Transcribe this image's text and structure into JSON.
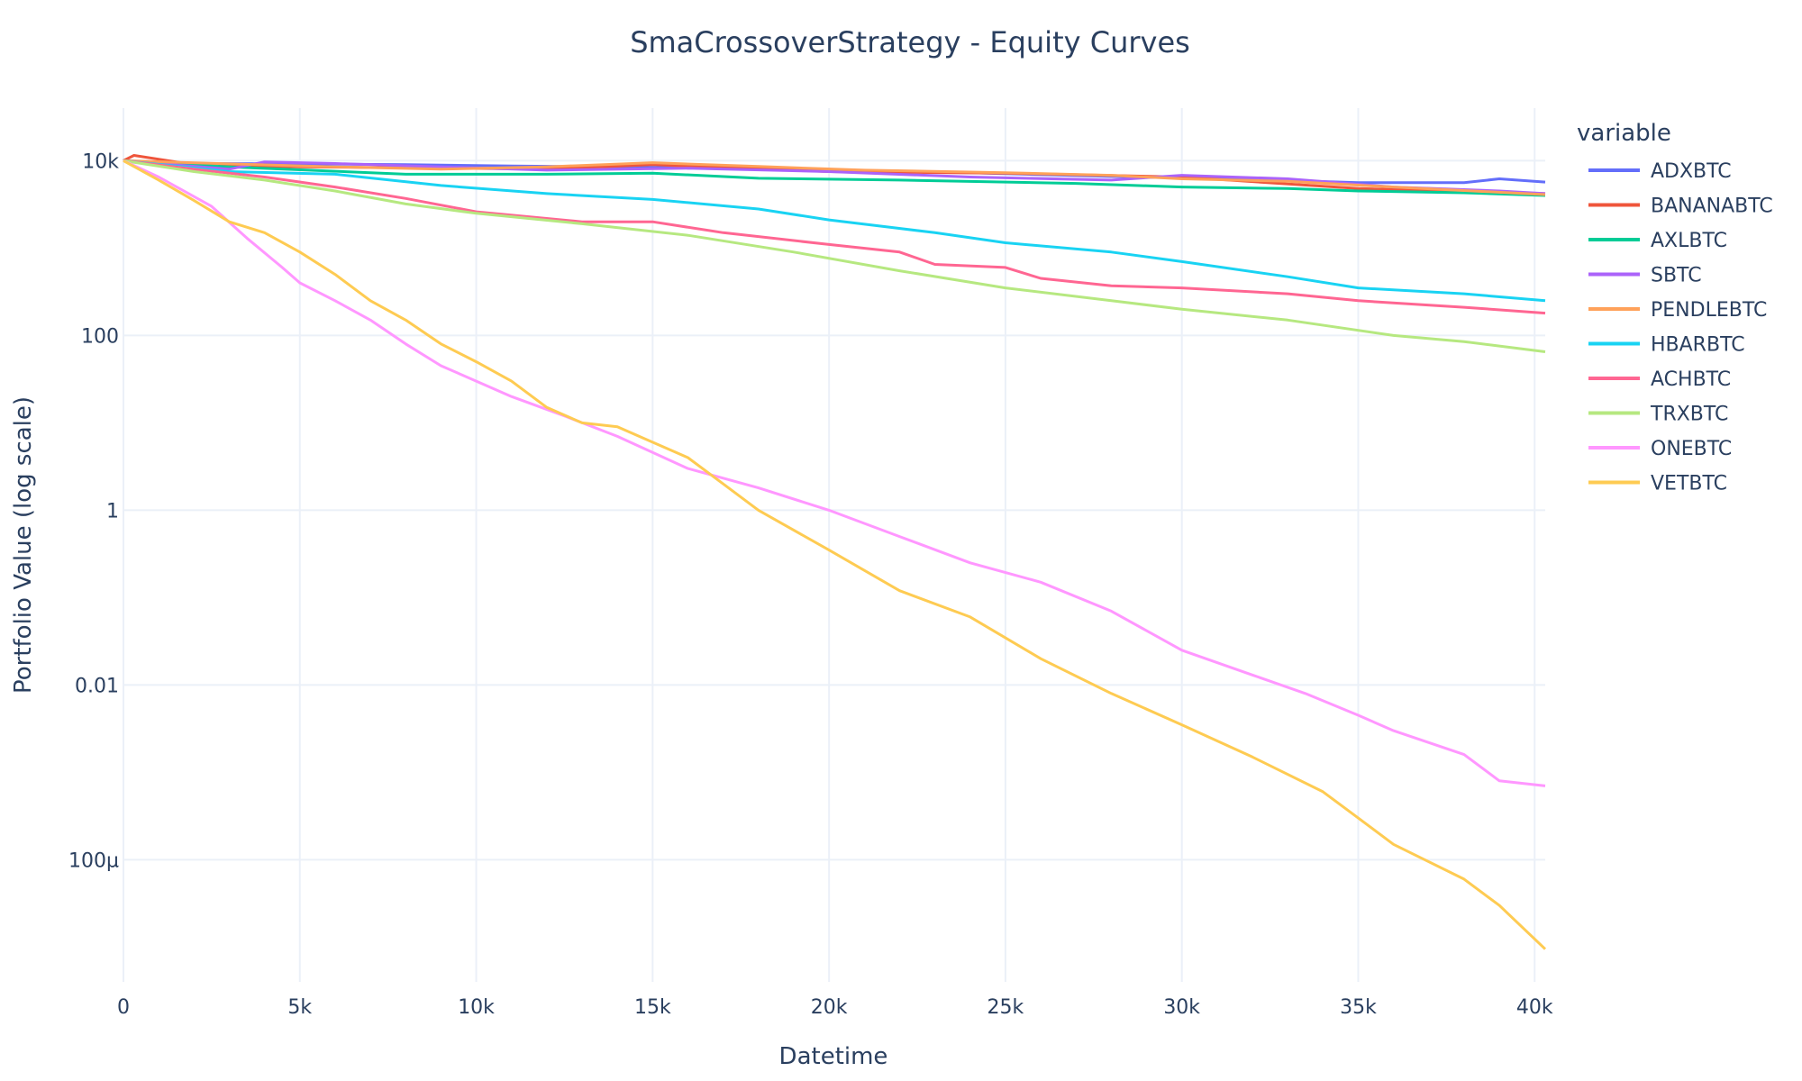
{
  "chart_data": {
    "type": "line",
    "title": "SmaCrossoverStrategy - Equity Curves",
    "xlabel": "Datetime",
    "ylabel": "Portfolio Value (log scale)",
    "yscale": "log",
    "grid": true,
    "legend_title": "variable",
    "legend_position": "right",
    "xlim": [
      0,
      40300
    ],
    "ylim": [
      4e-06,
      40000
    ],
    "x_ticks": [
      {
        "value": 0,
        "label": "0"
      },
      {
        "value": 5000,
        "label": "5k"
      },
      {
        "value": 10000,
        "label": "10k"
      },
      {
        "value": 15000,
        "label": "15k"
      },
      {
        "value": 20000,
        "label": "20k"
      },
      {
        "value": 25000,
        "label": "25k"
      },
      {
        "value": 30000,
        "label": "30k"
      },
      {
        "value": 35000,
        "label": "35k"
      },
      {
        "value": 40000,
        "label": "40k"
      }
    ],
    "y_ticks": [
      {
        "value": 10000,
        "label": "10k"
      },
      {
        "value": 100,
        "label": "100"
      },
      {
        "value": 1,
        "label": "1"
      },
      {
        "value": 0.01,
        "label": "0.01"
      },
      {
        "value": 0.0001,
        "label": "100µ"
      }
    ],
    "series": [
      {
        "name": "ADXBTC",
        "color": "#636efa",
        "x": [
          0,
          2000,
          5000,
          8000,
          11000,
          14000,
          17000,
          20000,
          24000,
          28000,
          32000,
          35000,
          38000,
          39000,
          40300
        ],
        "y": [
          10000,
          9300,
          9200,
          9000,
          8700,
          8500,
          8200,
          7800,
          7300,
          6600,
          6100,
          5600,
          5600,
          6200,
          5700
        ]
      },
      {
        "name": "BANANABTC",
        "color": "#EF553B",
        "x": [
          0,
          300,
          2000,
          5000,
          8000,
          12000,
          15000,
          20000,
          25000,
          30000,
          35000,
          40300
        ],
        "y": [
          10000,
          11500,
          9000,
          8500,
          8300,
          8000,
          9000,
          7500,
          7200,
          6500,
          4800,
          4200
        ]
      },
      {
        "name": "AXLBTC",
        "color": "#00cc96",
        "x": [
          0,
          3000,
          8000,
          12000,
          15000,
          18000,
          22000,
          27000,
          30000,
          33000,
          35000,
          38000,
          40300
        ],
        "y": [
          10000,
          8500,
          7000,
          7000,
          7200,
          6300,
          6000,
          5500,
          5000,
          4800,
          4500,
          4300,
          4000
        ]
      },
      {
        "name": "SBTC",
        "color": "#ab63fa",
        "x": [
          0,
          3000,
          4000,
          6000,
          9000,
          12000,
          16000,
          20000,
          24000,
          28000,
          30000,
          33000,
          36000,
          39000,
          40300
        ],
        "y": [
          10000,
          8000,
          9700,
          9300,
          8500,
          7800,
          8200,
          7500,
          6500,
          6000,
          6800,
          6200,
          5000,
          4500,
          4200
        ]
      },
      {
        "name": "PENDLEBTC",
        "color": "#FFA15A",
        "x": [
          0,
          3000,
          6000,
          9000,
          12000,
          15000,
          18000,
          21000,
          25000,
          28000,
          30000,
          33000,
          36000,
          40300
        ],
        "y": [
          10000,
          9200,
          8500,
          8000,
          8500,
          9500,
          8600,
          7800,
          7300,
          6800,
          6200,
          5800,
          5000,
          4100
        ]
      },
      {
        "name": "HBARBTC",
        "color": "#19d3f3",
        "x": [
          0,
          3000,
          6000,
          9000,
          12000,
          15000,
          18000,
          20000,
          23000,
          25000,
          28000,
          30000,
          33000,
          35000,
          38000,
          40300
        ],
        "y": [
          10000,
          7500,
          7000,
          5200,
          4200,
          3600,
          2800,
          2100,
          1500,
          1150,
          900,
          700,
          470,
          350,
          300,
          250
        ]
      },
      {
        "name": "ACHBTC",
        "color": "#FF6692",
        "x": [
          0,
          2000,
          4000,
          6000,
          8000,
          10000,
          13000,
          15000,
          17000,
          20000,
          22000,
          23000,
          25000,
          26000,
          28000,
          30000,
          33000,
          35000,
          38000,
          40300
        ],
        "y": [
          10000,
          8000,
          6500,
          5000,
          3700,
          2600,
          2000,
          2000,
          1500,
          1100,
          900,
          650,
          600,
          450,
          370,
          350,
          300,
          250,
          210,
          180
        ]
      },
      {
        "name": "TRXBTC",
        "color": "#B6E880",
        "x": [
          0,
          2000,
          4000,
          6000,
          8000,
          10000,
          13000,
          16000,
          19000,
          22000,
          25000,
          28000,
          30000,
          33000,
          36000,
          38000,
          40300
        ],
        "y": [
          10000,
          7500,
          6000,
          4500,
          3200,
          2500,
          1900,
          1400,
          900,
          550,
          350,
          250,
          200,
          150,
          100,
          85,
          65
        ]
      },
      {
        "name": "ONEBTC",
        "color": "#FF97FF",
        "x": [
          0,
          1000,
          2500,
          3500,
          4500,
          5000,
          6000,
          7000,
          8000,
          9000,
          10000,
          11000,
          12500,
          14000,
          16000,
          18000,
          20000,
          22000,
          24000,
          26000,
          28000,
          30000,
          32000,
          33500,
          35000,
          36000,
          38000,
          39000,
          40300
        ],
        "y": [
          10000,
          6500,
          3000,
          1300,
          600,
          400,
          250,
          150,
          80,
          45,
          30,
          20,
          12,
          7,
          3,
          1.8,
          1,
          0.5,
          0.25,
          0.15,
          0.07,
          0.025,
          0.013,
          0.008,
          0.0045,
          0.003,
          0.0016,
          0.0008,
          0.0007
        ]
      },
      {
        "name": "VETBTC",
        "color": "#FECB52",
        "x": [
          0,
          1000,
          2000,
          3000,
          4000,
          5000,
          6000,
          7000,
          8000,
          9000,
          10000,
          11000,
          12000,
          13000,
          14000,
          15000,
          16000,
          17000,
          18000,
          20000,
          22000,
          24000,
          26000,
          28000,
          30000,
          32000,
          34000,
          35000,
          36000,
          38000,
          39000,
          40300
        ],
        "y": [
          10000,
          6000,
          3500,
          2000,
          1500,
          900,
          500,
          250,
          150,
          80,
          50,
          30,
          15,
          10,
          9,
          6,
          4,
          2,
          1,
          0.35,
          0.12,
          0.06,
          0.02,
          0.008,
          0.0035,
          0.0015,
          0.0006,
          0.0003,
          0.00015,
          6e-05,
          3e-05,
          9.5e-06
        ]
      }
    ]
  }
}
